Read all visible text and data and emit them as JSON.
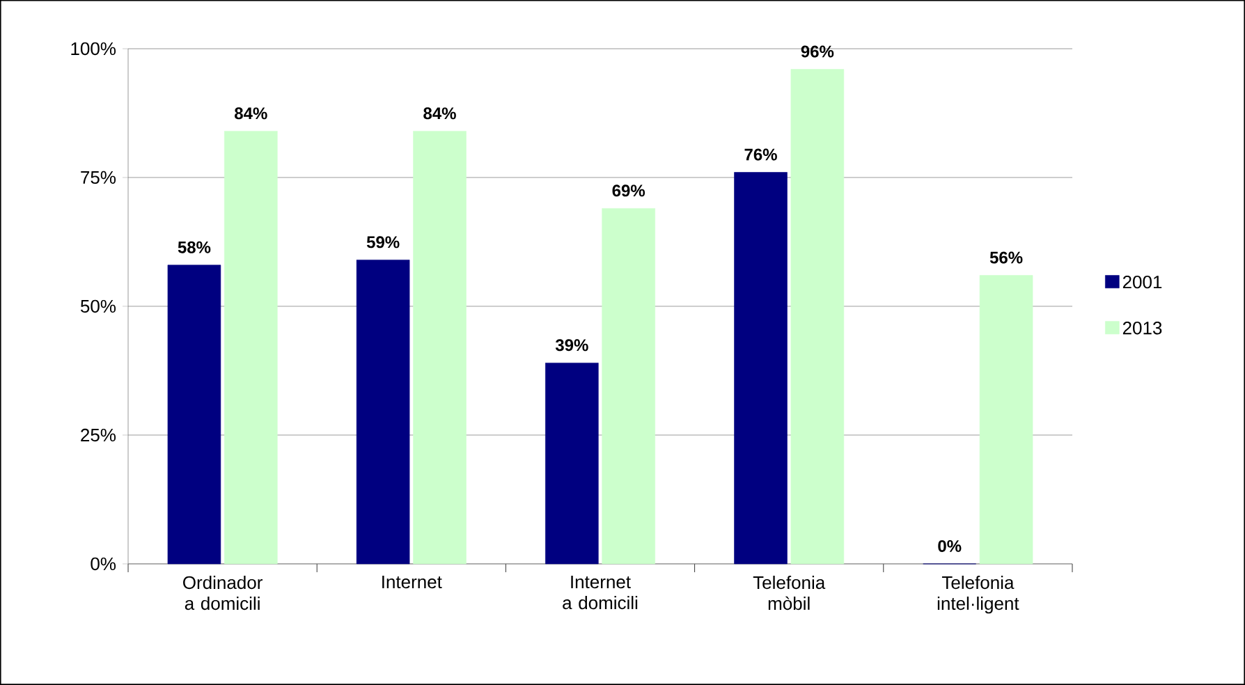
{
  "chart_data": {
    "type": "bar",
    "categories": [
      "Ordinador a domicili",
      "Internet",
      "Internet a domicili",
      "Telefonia mòbil",
      "Telefonia intel·ligent"
    ],
    "series": [
      {
        "name": "2001",
        "color": "#000080",
        "values": [
          58,
          59,
          39,
          76,
          0
        ],
        "value_labels": [
          "58%",
          "59%",
          "39%",
          "76%",
          "0%"
        ]
      },
      {
        "name": "2013",
        "color": "#ccffcc",
        "values": [
          84,
          84,
          69,
          96,
          56
        ],
        "value_labels": [
          "84%",
          "84%",
          "69%",
          "96%",
          "56%"
        ]
      }
    ],
    "ylim": [
      0,
      100
    ],
    "yticks": [
      {
        "value": 0,
        "label": "0%"
      },
      {
        "value": 25,
        "label": "25%"
      },
      {
        "value": 50,
        "label": "50%"
      },
      {
        "value": 75,
        "label": "75%"
      },
      {
        "value": 100,
        "label": "100%"
      }
    ],
    "grid": "y",
    "legend": "right"
  }
}
